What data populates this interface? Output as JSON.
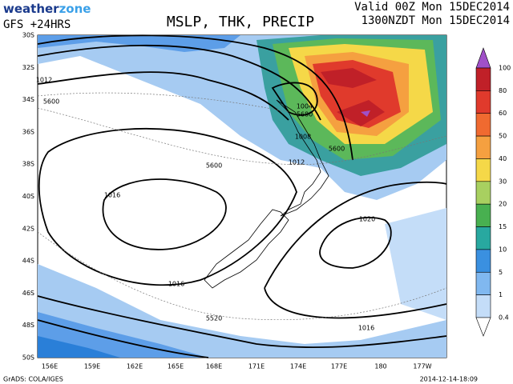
{
  "header": {
    "logo_weather": "weather",
    "logo_zone": "zone",
    "model": "GFS +24HRS",
    "title": "MSLP, THK, PRECIP",
    "valid_utc": "Valid 00Z Mon 15DEC2014",
    "valid_local": "1300NZDT Mon 15DEC2014"
  },
  "map": {
    "lat_labels": [
      "30S",
      "32S",
      "34S",
      "36S",
      "38S",
      "40S",
      "42S",
      "44S",
      "46S",
      "48S",
      "50S"
    ],
    "lon_labels": [
      "156E",
      "159E",
      "162E",
      "165E",
      "168E",
      "171E",
      "174E",
      "177E",
      "180",
      "177W"
    ],
    "contour_labels": [
      "1012",
      "5600",
      "1004",
      "5680",
      "1008",
      "1012",
      "5600",
      "5600",
      "1016",
      "1020",
      "1016",
      "5520",
      "1016"
    ]
  },
  "legend": {
    "labels": [
      "100",
      "80",
      "60",
      "50",
      "40",
      "30",
      "20",
      "15",
      "10",
      "5",
      "1",
      "0.4"
    ],
    "top_color": "#a050c8",
    "colors": [
      "#c02028",
      "#e03a2c",
      "#f06a30",
      "#f5a040",
      "#f5d848",
      "#a8d060",
      "#48b050",
      "#28a8a0",
      "#3a90e0",
      "#80b8f0",
      "#c4ddf8"
    ]
  },
  "footer": {
    "source": "GrADS: COLA/IGES",
    "timestamp": "2014-12-14-18:09"
  }
}
